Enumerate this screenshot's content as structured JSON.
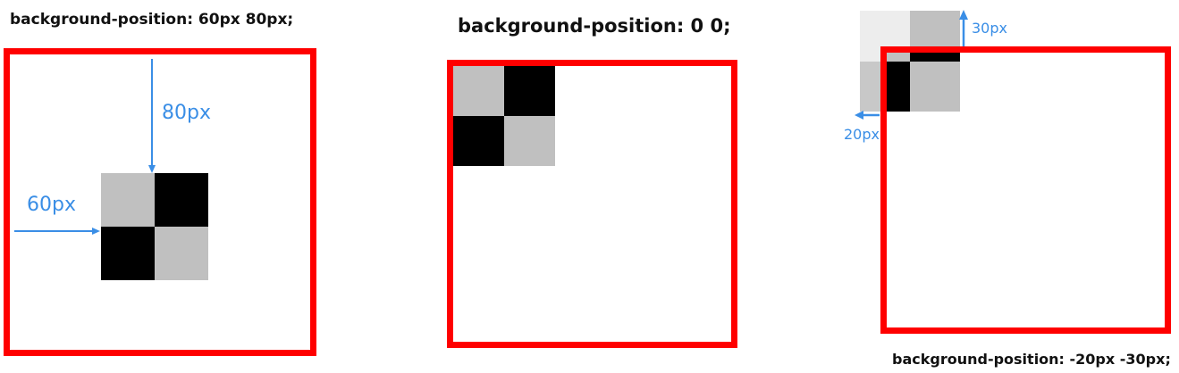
{
  "diagrams": [
    {
      "caption": "background-position: 60px 80px;",
      "labels": {
        "vertical": "80px",
        "horizontal": "60px"
      }
    },
    {
      "caption": "background-position: 0 0;"
    },
    {
      "caption": "background-position: -20px -30px;",
      "labels": {
        "vertical": "30px",
        "horizontal": "20px"
      }
    }
  ],
  "colors": {
    "frame": "#ff0000",
    "dark_tile": "#000000",
    "light_tile": "#c0c0c0",
    "arrow": "#3a8ee6"
  }
}
